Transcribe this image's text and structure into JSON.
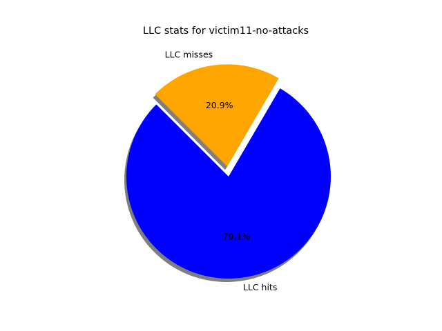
{
  "chart_data": {
    "type": "pie",
    "title": "LLC stats for victim11-no-attacks",
    "slices": [
      {
        "label": "LLC hits",
        "value": 79.1,
        "pct_label": "79.1%",
        "color": "#0000ff",
        "exploded": false
      },
      {
        "label": "LLC misses",
        "value": 20.9,
        "pct_label": "20.9%",
        "color": "#ffa500",
        "exploded": true
      }
    ],
    "shadow": true,
    "start_angle": 135,
    "legend": "none"
  }
}
